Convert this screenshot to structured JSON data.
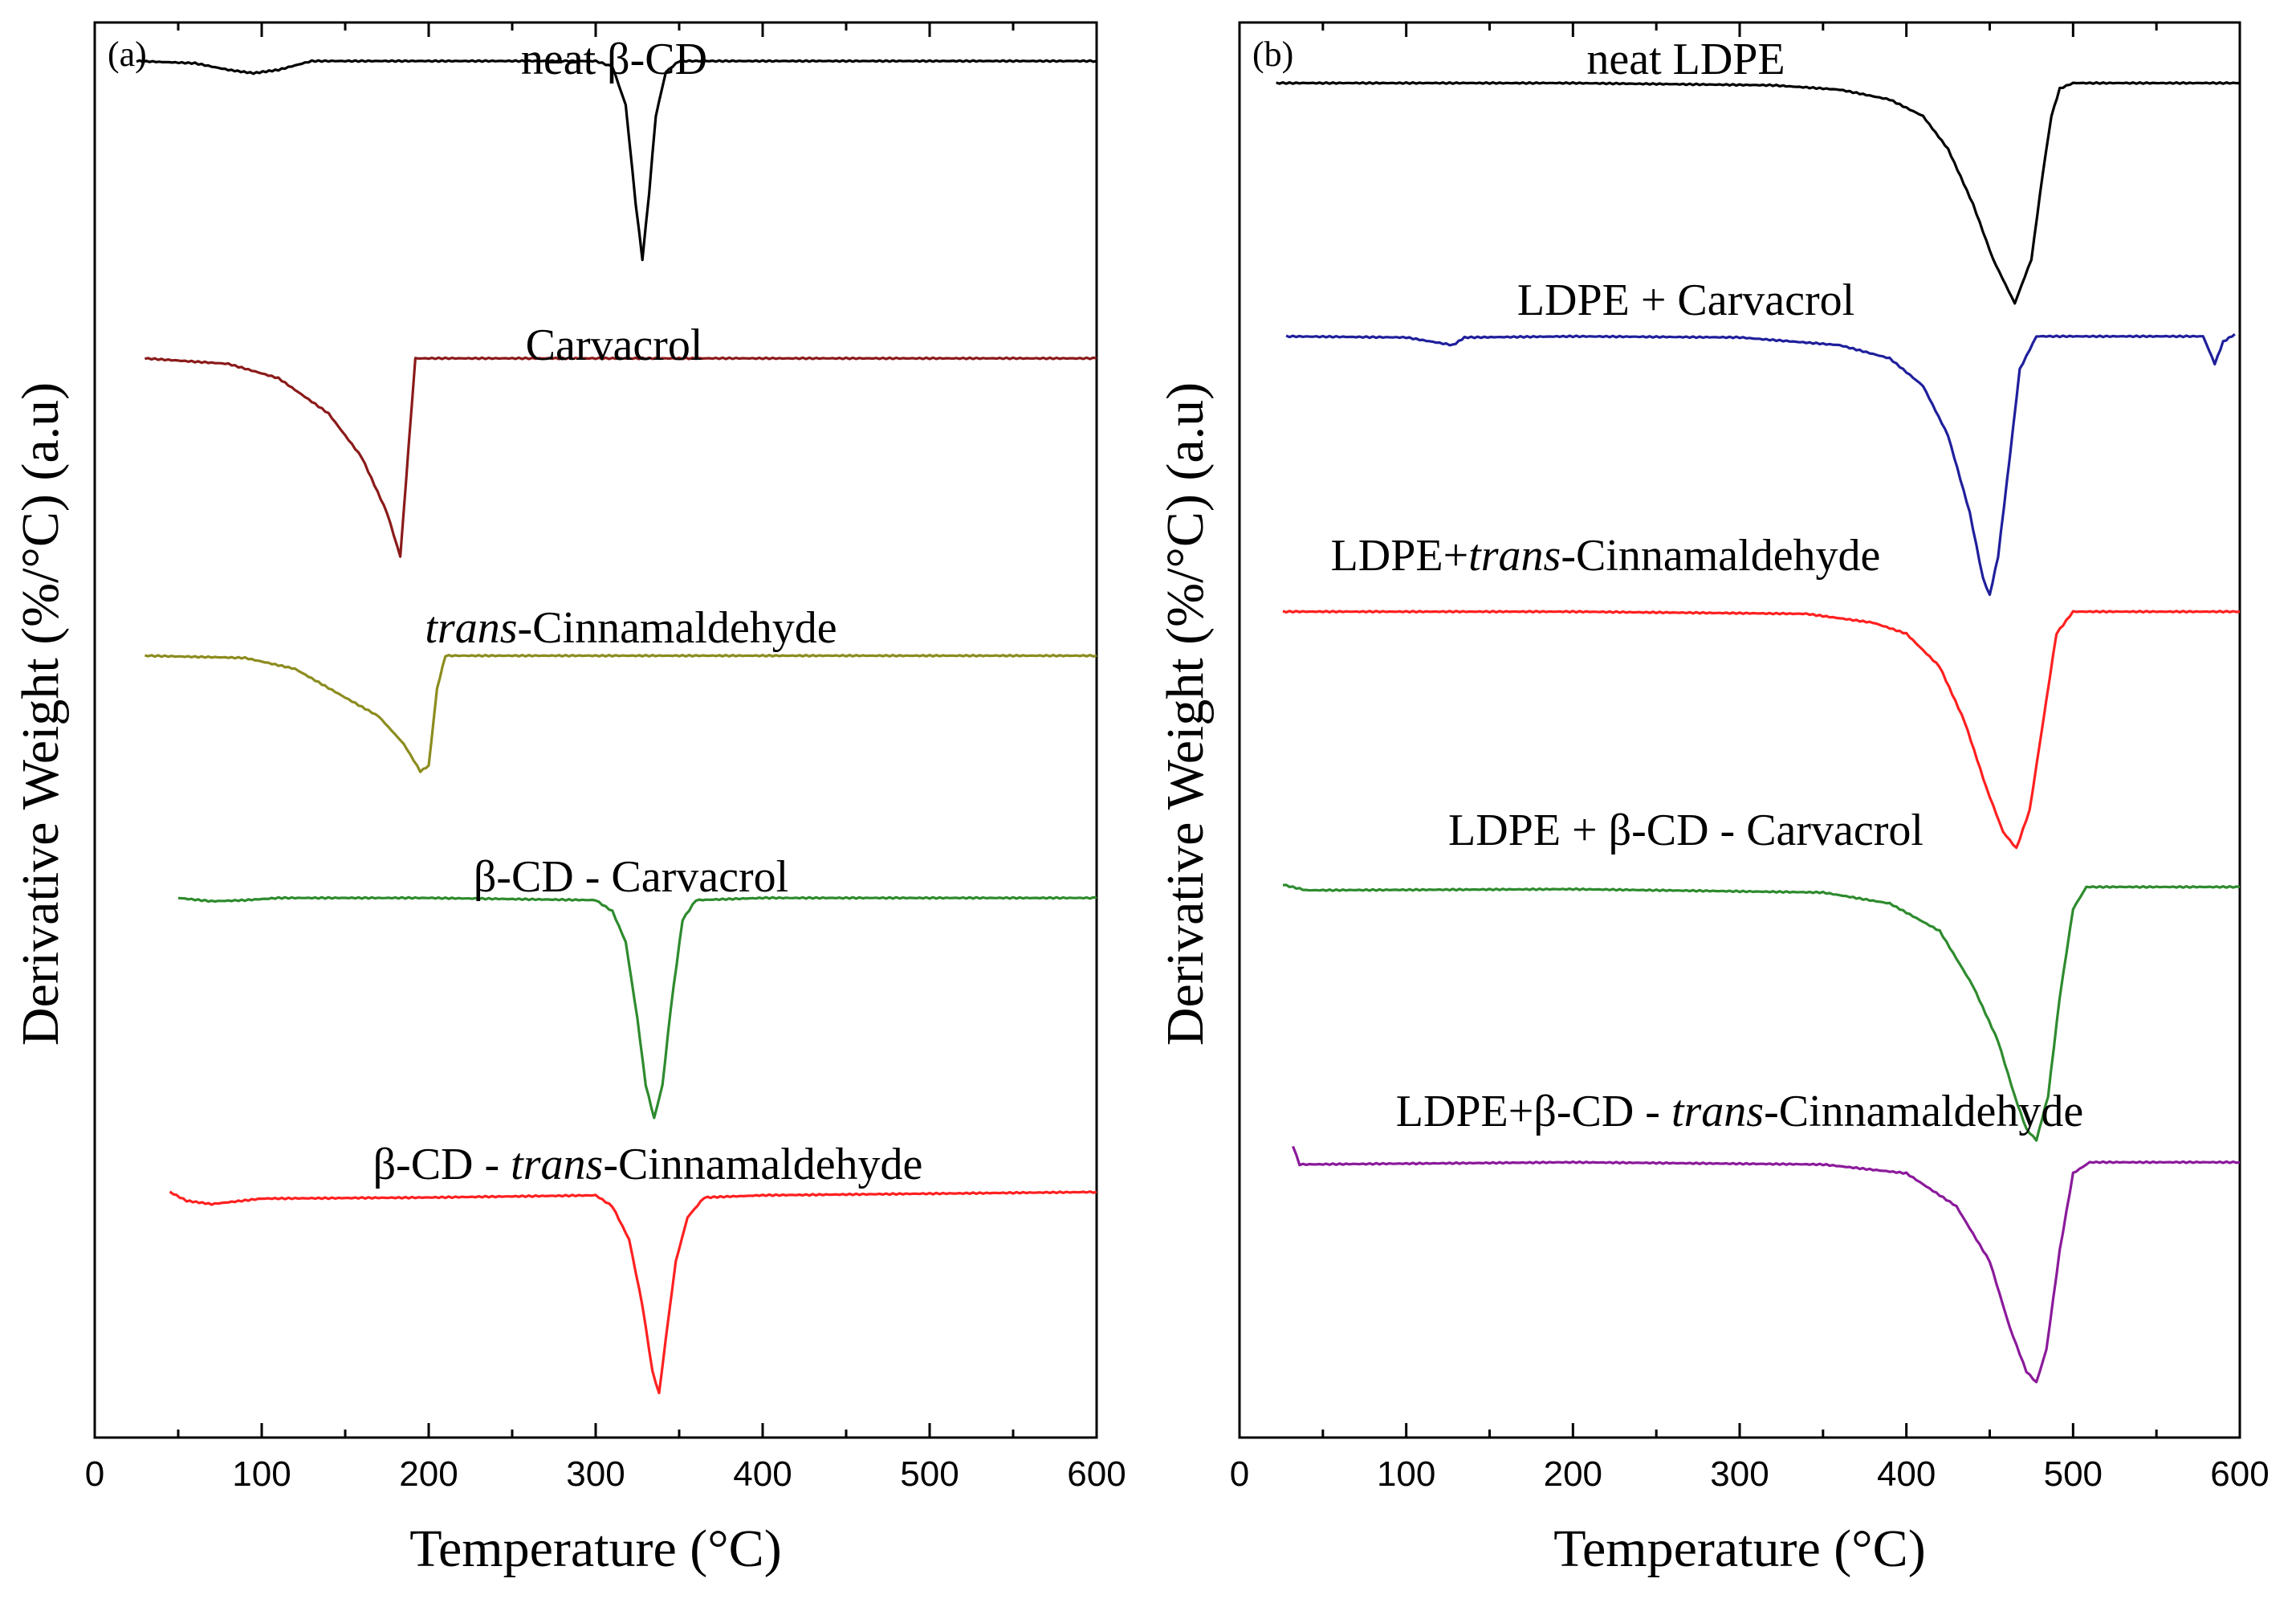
{
  "chart_data": [
    {
      "type": "line",
      "panel_label": "(a)",
      "xlabel": "Temperature (°C)",
      "ylabel": "Derivative Weight (%/°C) (a.u)",
      "xlim": [
        0,
        600
      ],
      "xticks": [
        0,
        100,
        200,
        300,
        400,
        500,
        600
      ],
      "y_ticks_shown": false,
      "grid": false,
      "curves_are_vertically_offset": true,
      "series": [
        {
          "name": "neat β-CD",
          "label_parts": [
            {
              "t": "neat β-CD",
              "i": false
            }
          ],
          "color": "#000000",
          "baseline": 0.0,
          "x": [
            25,
            60,
            80,
            95,
            110,
            130,
            200,
            300,
            310,
            318,
            324,
            328,
            332,
            336,
            342,
            350,
            360,
            450,
            600
          ],
          "y": [
            0.0,
            -0.02,
            -0.08,
            -0.11,
            -0.08,
            0.0,
            0.0,
            0.0,
            -0.05,
            -0.4,
            -1.3,
            -1.8,
            -1.2,
            -0.5,
            -0.1,
            0.0,
            0.0,
            0.0,
            0.0
          ]
        },
        {
          "name": "Carvacrol",
          "label_parts": [
            {
              "t": "Carvacrol",
              "i": false
            }
          ],
          "color": "#8B1A1A",
          "baseline": -2.7,
          "x": [
            30,
            80,
            110,
            140,
            160,
            175,
            183,
            188,
            192,
            300,
            450,
            600
          ],
          "y": [
            -2.7,
            -2.75,
            -2.88,
            -3.2,
            -3.6,
            -4.1,
            -4.5,
            -3.5,
            -2.7,
            -2.7,
            -2.7,
            -2.7
          ],
          "trace": "down-ramp to minimum ~183 °C then sharp return"
        },
        {
          "name": "trans-Cinnamaldehyde",
          "label_parts": [
            {
              "t": "trans",
              "i": true
            },
            {
              "t": "-Cinnamaldehyde",
              "i": false
            }
          ],
          "color": "#8C8C1F",
          "baseline": -5.4,
          "x": [
            30,
            90,
            120,
            150,
            170,
            185,
            195,
            200,
            205,
            210,
            300,
            450,
            600
          ],
          "y": [
            -5.4,
            -5.42,
            -5.52,
            -5.78,
            -5.95,
            -6.2,
            -6.45,
            -6.4,
            -5.7,
            -5.4,
            -5.4,
            -5.4,
            -5.4
          ]
        },
        {
          "name": "β-CD - Carvacrol",
          "label_parts": [
            {
              "t": "β-CD - Carvacrol",
              "i": false
            }
          ],
          "color": "#2E8B2E",
          "baseline": -7.6,
          "x": [
            50,
            70,
            90,
            110,
            200,
            300,
            310,
            318,
            325,
            330,
            335,
            340,
            345,
            352,
            360,
            400,
            600
          ],
          "y": [
            -7.6,
            -7.63,
            -7.62,
            -7.6,
            -7.6,
            -7.62,
            -7.72,
            -8.0,
            -8.7,
            -9.3,
            -9.6,
            -9.3,
            -8.6,
            -7.8,
            -7.62,
            -7.6,
            -7.6
          ]
        },
        {
          "name": "β-CD - trans-Cinnamaldehyde",
          "label_parts": [
            {
              "t": "β-CD - ",
              "i": false
            },
            {
              "t": "trans",
              "i": true
            },
            {
              "t": "-Cinnamaldehyde",
              "i": false
            }
          ],
          "color": "#FF2020",
          "baseline": -10.3,
          "x": [
            45,
            55,
            70,
            100,
            200,
            300,
            310,
            320,
            328,
            334,
            338,
            342,
            348,
            355,
            365,
            400,
            600
          ],
          "y": [
            -10.27,
            -10.35,
            -10.38,
            -10.33,
            -10.32,
            -10.3,
            -10.4,
            -10.7,
            -11.3,
            -11.9,
            -12.1,
            -11.6,
            -10.9,
            -10.5,
            -10.32,
            -10.3,
            -10.27
          ]
        }
      ]
    },
    {
      "type": "line",
      "panel_label": "(b)",
      "xlabel": "Temperature (°C)",
      "ylabel": "Derivative Weight (%/°C) (a.u)",
      "xlim": [
        0,
        600
      ],
      "xticks": [
        0,
        100,
        200,
        300,
        400,
        500,
        600
      ],
      "y_ticks_shown": false,
      "grid": false,
      "curves_are_vertically_offset": true,
      "series": [
        {
          "name": "neat LDPE",
          "label_parts": [
            {
              "t": "neat LDPE",
              "i": false
            }
          ],
          "color": "#000000",
          "baseline": 0.0,
          "x": [
            22,
            200,
            320,
            360,
            390,
            410,
            425,
            440,
            452,
            465,
            475,
            482,
            487,
            492,
            500,
            600
          ],
          "y": [
            0.0,
            0.0,
            -0.02,
            -0.06,
            -0.15,
            -0.3,
            -0.6,
            -1.1,
            -1.6,
            -2.0,
            -1.6,
            -0.8,
            -0.3,
            -0.05,
            0.0,
            0.0
          ]
        },
        {
          "name": "LDPE + Carvacrol",
          "label_parts": [
            {
              "t": "LDPE + Carvacrol",
              "i": false
            }
          ],
          "color": "#1F1F9C",
          "baseline": -2.3,
          "x": [
            28,
            100,
            128,
            135,
            200,
            300,
            360,
            390,
            410,
            425,
            438,
            446,
            450,
            455,
            462,
            468,
            478,
            500,
            560,
            578,
            585,
            590,
            597
          ],
          "y": [
            -2.3,
            -2.31,
            -2.38,
            -2.31,
            -2.3,
            -2.31,
            -2.38,
            -2.5,
            -2.75,
            -3.2,
            -3.9,
            -4.5,
            -4.65,
            -4.3,
            -3.4,
            -2.6,
            -2.3,
            -2.3,
            -2.3,
            -2.3,
            -2.55,
            -2.35,
            -2.28
          ]
        },
        {
          "name": "LDPE + trans-Cinnamaldehyde",
          "label_parts": [
            {
              "t": "LDPE",
              "i": false
            },
            {
              "t": "+",
              "i": false
            },
            {
              "t": "trans",
              "i": true
            },
            {
              "t": "-Cinnamaldehyde",
              "i": false
            }
          ],
          "color": "#FF2020",
          "baseline": -4.8,
          "x": [
            26,
            200,
            340,
            380,
            400,
            420,
            435,
            448,
            458,
            466,
            474,
            482,
            490,
            500,
            600
          ],
          "y": [
            -4.8,
            -4.8,
            -4.82,
            -4.9,
            -5.0,
            -5.3,
            -5.8,
            -6.4,
            -6.8,
            -6.95,
            -6.6,
            -5.8,
            -5.0,
            -4.8,
            -4.8
          ]
        },
        {
          "name": "LDPE + β-CD - Carvacrol",
          "label_parts": [
            {
              "t": "LDPE + β-CD - Carvacrol",
              "i": false
            }
          ],
          "color": "#2E8B2E",
          "baseline": -7.3,
          "x": [
            26,
            40,
            200,
            350,
            390,
            420,
            440,
            455,
            465,
            472,
            478,
            485,
            492,
            500,
            508,
            600
          ],
          "y": [
            -7.28,
            -7.33,
            -7.32,
            -7.35,
            -7.45,
            -7.7,
            -8.2,
            -8.7,
            -9.2,
            -9.5,
            -9.6,
            -9.2,
            -8.3,
            -7.5,
            -7.3,
            -7.3
          ]
        },
        {
          "name": "LDPE + β-CD - trans-Cinnamaldehyde",
          "label_parts": [
            {
              "t": "LDPE",
              "i": false
            },
            {
              "t": "+",
              "i": false
            },
            {
              "t": "β-CD - ",
              "i": false
            },
            {
              "t": "trans",
              "i": true
            },
            {
              "t": "-Cinnamaldehyde",
              "i": false
            }
          ],
          "color": "#8B1A9B",
          "baseline": -9.8,
          "x": [
            32,
            36,
            200,
            350,
            400,
            430,
            450,
            462,
            472,
            478,
            484,
            492,
            500,
            510,
            600
          ],
          "y": [
            -9.65,
            -9.82,
            -9.8,
            -9.82,
            -9.9,
            -10.2,
            -10.7,
            -11.3,
            -11.7,
            -11.8,
            -11.5,
            -10.6,
            -9.9,
            -9.8,
            -9.8
          ]
        }
      ]
    }
  ]
}
